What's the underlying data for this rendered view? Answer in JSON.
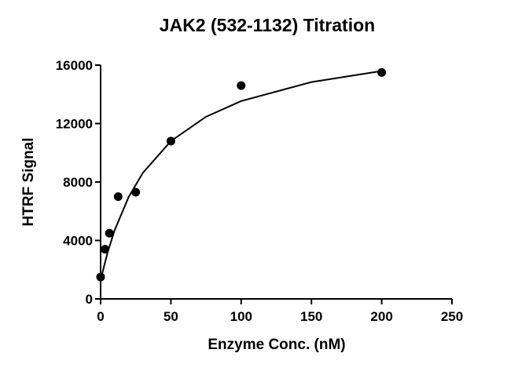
{
  "chart_data": {
    "type": "scatter",
    "title": "JAK2 (532-1132) Titration",
    "x_label": "Enzyme Conc. (nM)",
    "y_label": "HTRF Signal",
    "xlim": [
      0,
      250
    ],
    "xticks": [
      0,
      50,
      100,
      150,
      200,
      250
    ],
    "ylim": [
      0,
      16000
    ],
    "yticks": [
      0,
      4000,
      8000,
      12000,
      16000
    ],
    "series": [
      {
        "type": "scatter",
        "color": "#000000",
        "x": [
          0,
          3.125,
          6.25,
          12.5,
          25,
          50,
          100,
          200
        ],
        "values": [
          1500,
          3400,
          4500,
          7000,
          7300,
          10800,
          14600,
          15500
        ]
      },
      {
        "type": "line",
        "color": "#000000",
        "x": [
          0,
          5,
          10,
          20,
          30,
          50,
          75,
          100,
          150,
          200
        ],
        "values": [
          1300,
          3190,
          4705,
          6984,
          8617,
          10800,
          12466,
          13540,
          14840,
          15600
        ]
      }
    ]
  }
}
